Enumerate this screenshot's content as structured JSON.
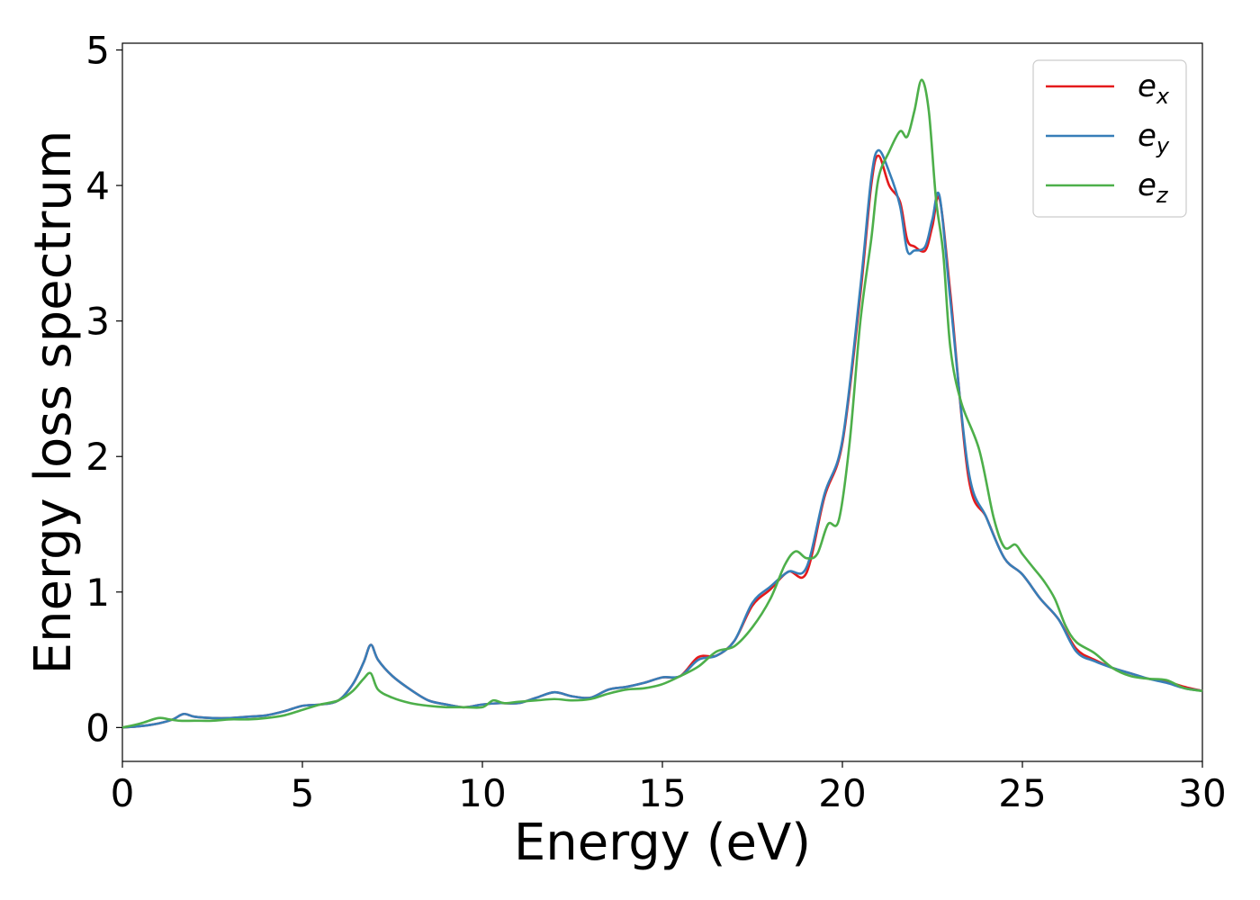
{
  "chart_data": {
    "type": "line",
    "title": "",
    "xlabel": "Energy (eV)",
    "ylabel": "Energy loss spectrum",
    "xlim": [
      0,
      30
    ],
    "ylim": [
      -0.25,
      5.05
    ],
    "xticks": [
      0,
      5,
      10,
      15,
      20,
      25,
      30
    ],
    "yticks": [
      0,
      1,
      2,
      3,
      4,
      5
    ],
    "xtick_labels": [
      "0",
      "5",
      "10",
      "15",
      "20",
      "25",
      "30"
    ],
    "ytick_labels": [
      "0",
      "1",
      "2",
      "3",
      "4",
      "5"
    ],
    "grid": false,
    "legend_position": "top-right",
    "series": [
      {
        "name": "e_x",
        "label_base": "e",
        "label_sub": "x",
        "color": "#e41a1c",
        "x": [
          0,
          0.5,
          1.0,
          1.4,
          1.7,
          2.0,
          2.5,
          3.0,
          3.5,
          4.0,
          4.5,
          5.0,
          5.5,
          6.0,
          6.4,
          6.7,
          6.9,
          7.1,
          7.5,
          8.0,
          8.5,
          9.0,
          9.5,
          10.0,
          10.5,
          11.0,
          11.5,
          12.0,
          12.5,
          13.0,
          13.5,
          14.0,
          14.5,
          15.0,
          15.5,
          16.0,
          16.5,
          17.0,
          17.5,
          18.0,
          18.5,
          19.0,
          19.5,
          20.0,
          20.5,
          20.8,
          21.0,
          21.3,
          21.6,
          21.8,
          22.0,
          22.3,
          22.5,
          22.7,
          23.0,
          23.5,
          24.0,
          24.5,
          25.0,
          25.5,
          26.0,
          26.5,
          27.0,
          27.5,
          28.0,
          28.5,
          29.0,
          29.5,
          30.0
        ],
        "y": [
          0.0,
          0.01,
          0.03,
          0.06,
          0.1,
          0.08,
          0.07,
          0.07,
          0.08,
          0.09,
          0.12,
          0.16,
          0.17,
          0.2,
          0.32,
          0.48,
          0.61,
          0.5,
          0.38,
          0.28,
          0.2,
          0.17,
          0.15,
          0.17,
          0.18,
          0.18,
          0.22,
          0.26,
          0.23,
          0.22,
          0.28,
          0.3,
          0.33,
          0.37,
          0.38,
          0.52,
          0.53,
          0.64,
          0.9,
          1.02,
          1.15,
          1.14,
          1.7,
          2.1,
          3.2,
          4.0,
          4.22,
          4.0,
          3.88,
          3.6,
          3.55,
          3.52,
          3.7,
          3.9,
          3.2,
          1.85,
          1.55,
          1.25,
          1.13,
          0.95,
          0.8,
          0.58,
          0.5,
          0.44,
          0.4,
          0.36,
          0.34,
          0.3,
          0.27
        ]
      },
      {
        "name": "e_y",
        "label_base": "e",
        "label_sub": "y",
        "color": "#377eb8",
        "x": [
          0,
          0.5,
          1.0,
          1.4,
          1.7,
          2.0,
          2.5,
          3.0,
          3.5,
          4.0,
          4.5,
          5.0,
          5.5,
          6.0,
          6.4,
          6.7,
          6.9,
          7.1,
          7.5,
          8.0,
          8.5,
          9.0,
          9.5,
          10.0,
          10.5,
          11.0,
          11.5,
          12.0,
          12.5,
          13.0,
          13.5,
          14.0,
          14.5,
          15.0,
          15.5,
          16.0,
          16.5,
          17.0,
          17.5,
          18.0,
          18.5,
          19.0,
          19.5,
          20.0,
          20.5,
          20.8,
          21.0,
          21.3,
          21.6,
          21.8,
          22.0,
          22.3,
          22.5,
          22.7,
          23.0,
          23.5,
          24.0,
          24.5,
          25.0,
          25.5,
          26.0,
          26.5,
          27.0,
          27.5,
          28.0,
          28.5,
          29.0,
          29.5,
          30.0
        ],
        "y": [
          0.0,
          0.01,
          0.03,
          0.06,
          0.1,
          0.08,
          0.07,
          0.07,
          0.08,
          0.09,
          0.12,
          0.16,
          0.17,
          0.2,
          0.32,
          0.48,
          0.61,
          0.5,
          0.38,
          0.28,
          0.2,
          0.17,
          0.15,
          0.17,
          0.18,
          0.18,
          0.22,
          0.26,
          0.23,
          0.22,
          0.28,
          0.3,
          0.33,
          0.37,
          0.38,
          0.5,
          0.53,
          0.64,
          0.92,
          1.04,
          1.15,
          1.18,
          1.72,
          2.12,
          3.25,
          4.05,
          4.26,
          4.1,
          3.85,
          3.52,
          3.52,
          3.55,
          3.75,
          3.92,
          3.15,
          1.9,
          1.55,
          1.25,
          1.13,
          0.95,
          0.8,
          0.56,
          0.49,
          0.44,
          0.4,
          0.36,
          0.33,
          0.29,
          0.27
        ]
      },
      {
        "name": "e_z",
        "label_base": "e",
        "label_sub": "z",
        "color": "#4daf4a",
        "x": [
          0,
          0.5,
          1.0,
          1.3,
          1.6,
          2.0,
          2.5,
          3.0,
          3.5,
          4.0,
          4.5,
          5.0,
          5.5,
          6.0,
          6.4,
          6.7,
          6.9,
          7.1,
          7.5,
          8.0,
          8.5,
          9.0,
          9.5,
          10.0,
          10.3,
          10.6,
          11.0,
          11.5,
          12.0,
          12.5,
          13.0,
          13.5,
          14.0,
          14.5,
          15.0,
          15.5,
          16.0,
          16.5,
          17.0,
          17.5,
          18.0,
          18.4,
          18.7,
          19.0,
          19.3,
          19.6,
          19.9,
          20.2,
          20.5,
          20.8,
          21.0,
          21.3,
          21.6,
          21.8,
          22.0,
          22.2,
          22.4,
          22.6,
          22.8,
          23.0,
          23.3,
          23.8,
          24.2,
          24.5,
          24.8,
          25.0,
          25.3,
          25.6,
          25.9,
          26.2,
          26.5,
          27.0,
          27.5,
          28.0,
          28.5,
          29.0,
          29.5,
          30.0
        ],
        "y": [
          0.0,
          0.03,
          0.07,
          0.06,
          0.05,
          0.05,
          0.05,
          0.06,
          0.06,
          0.07,
          0.09,
          0.13,
          0.17,
          0.2,
          0.27,
          0.36,
          0.4,
          0.28,
          0.22,
          0.18,
          0.16,
          0.15,
          0.15,
          0.15,
          0.2,
          0.18,
          0.19,
          0.2,
          0.21,
          0.2,
          0.21,
          0.25,
          0.28,
          0.29,
          0.32,
          0.38,
          0.45,
          0.56,
          0.6,
          0.74,
          0.95,
          1.2,
          1.3,
          1.25,
          1.28,
          1.5,
          1.53,
          2.1,
          3.0,
          3.6,
          4.05,
          4.25,
          4.4,
          4.36,
          4.55,
          4.78,
          4.55,
          3.9,
          3.5,
          2.8,
          2.4,
          2.05,
          1.55,
          1.33,
          1.35,
          1.28,
          1.18,
          1.08,
          0.95,
          0.75,
          0.63,
          0.55,
          0.44,
          0.38,
          0.36,
          0.35,
          0.29,
          0.27
        ]
      }
    ]
  }
}
